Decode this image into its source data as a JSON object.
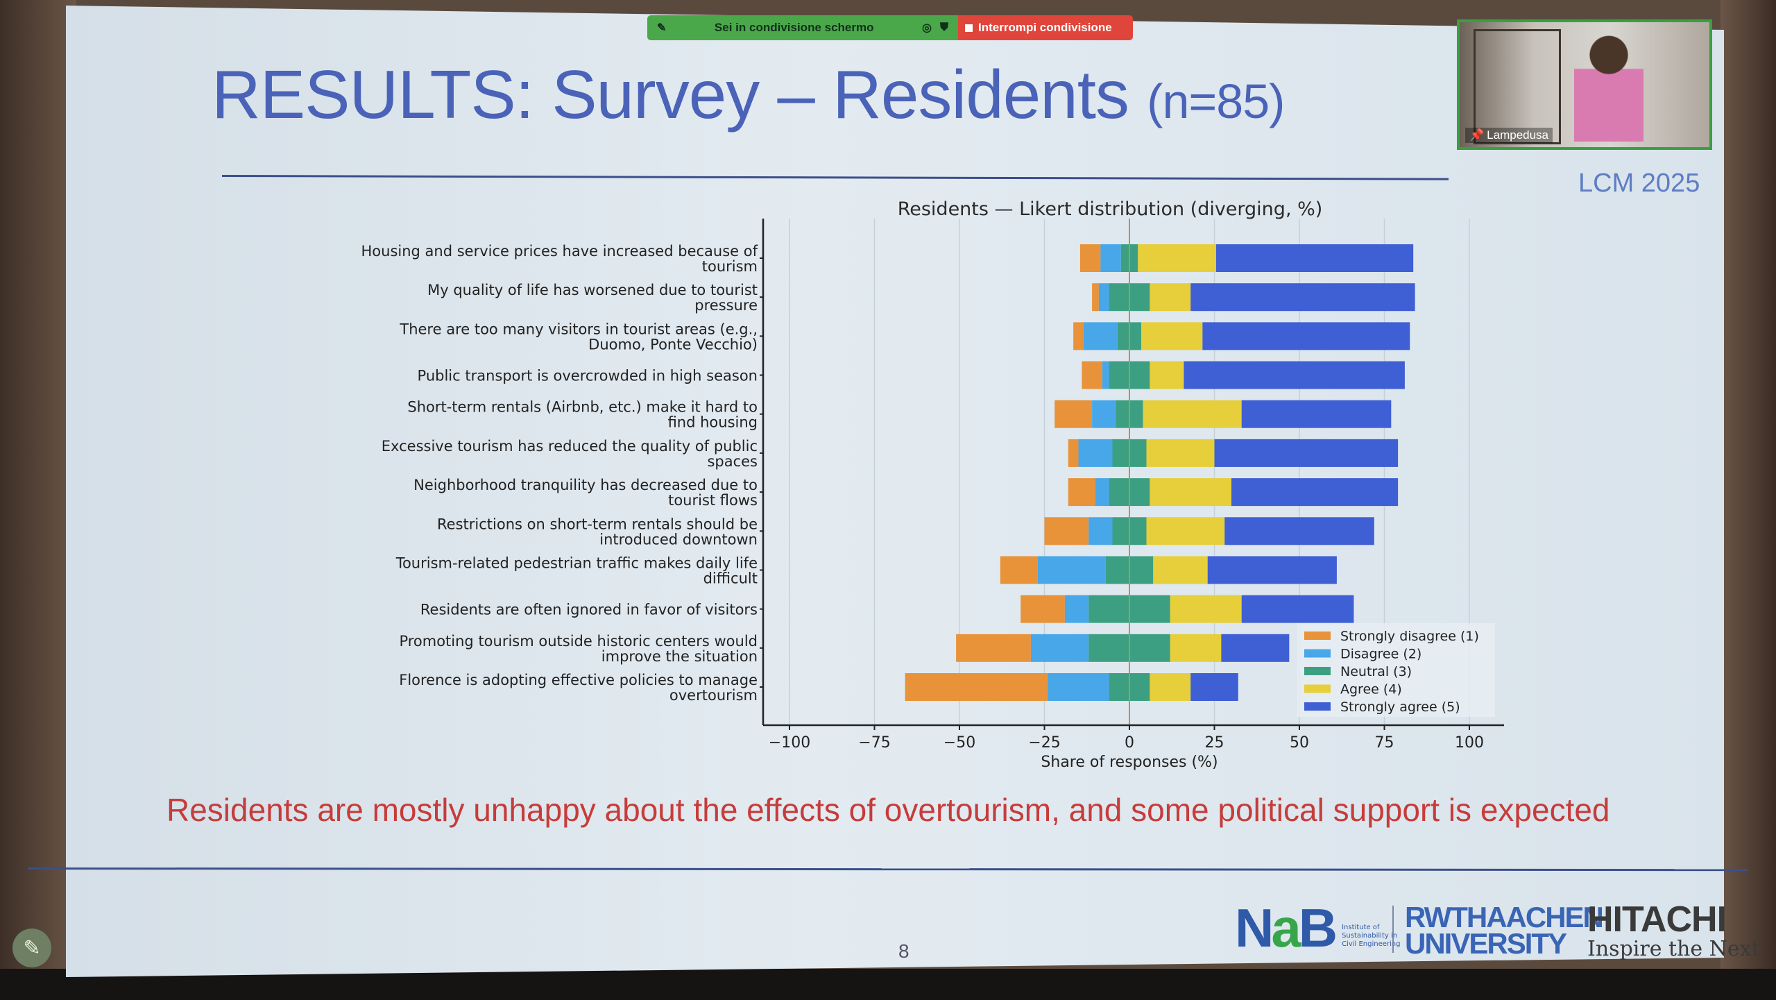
{
  "slide": {
    "title": "RESULTS: Survey – Residents",
    "title_n": "(n=85)",
    "tag": "LCM 2025",
    "conclusion": "Residents are mostly unhappy about the effects of overtourism, and some political support is expected",
    "page_number": "8"
  },
  "share_bar": {
    "status": "Sei in condivisione schermo",
    "stop": "Interrompi condivisione"
  },
  "video": {
    "participant": "Lampedusa"
  },
  "logos": {
    "nab_mark": "NaB",
    "nab_text": "Institute of Sustainability in Civil Engineering",
    "rwth_line1": "RWTHAACHEN",
    "rwth_line2": "UNIVERSITY",
    "hitachi": "HITACHI",
    "hitachi_slogan": "Inspire the Next"
  },
  "colors": {
    "strongly_disagree": "#e8923a",
    "disagree": "#48a7e8",
    "neutral": "#3d9f82",
    "agree": "#e6cf3a",
    "strongly_agree": "#3f5fd4",
    "title": "#4a63b8",
    "conclusion": "#c63c3a"
  },
  "chart_data": {
    "type": "bar",
    "subtype": "diverging-stacked-horizontal",
    "title": "Residents — Likert distribution (diverging, %)",
    "xlabel": "Share of responses (%)",
    "xlim": [
      -110,
      110
    ],
    "xticks": [
      "−100",
      "−75",
      "−50",
      "−25",
      "0",
      "25",
      "50",
      "75",
      "100"
    ],
    "xtick_values": [
      -100,
      -75,
      -50,
      -25,
      0,
      25,
      50,
      75,
      100
    ],
    "grid": true,
    "legend_position": "bottom-right",
    "categories": [
      "Housing and service prices have increased because of tourism",
      "My quality of life has worsened due to tourist pressure",
      "There are too many visitors in tourist areas (e.g., Duomo, Ponte Vecchio)",
      "Public transport is overcrowded in high season",
      "Short-term rentals (Airbnb, etc.) make it hard to find housing",
      "Excessive tourism has reduced the quality of public spaces",
      "Neighborhood tranquility has decreased due to tourist flows",
      "Restrictions on short-term rentals should be introduced downtown",
      "Tourism-related pedestrian traffic makes daily life difficult",
      "Residents are often ignored in favor of visitors",
      "Promoting tourism outside historic centers would improve the situation",
      "Florence is adopting effective policies to manage overtourism"
    ],
    "series": [
      {
        "name": "Strongly disagree (1)",
        "values": [
          6,
          2,
          3,
          6,
          11,
          3,
          8,
          13,
          11,
          13,
          22,
          42
        ]
      },
      {
        "name": "Disagree (2)",
        "values": [
          6,
          3,
          10,
          2,
          7,
          10,
          4,
          7,
          20,
          7,
          17,
          18
        ]
      },
      {
        "name": "Neutral (3)",
        "values": [
          5,
          12,
          7,
          12,
          8,
          10,
          12,
          10,
          14,
          24,
          24,
          12
        ]
      },
      {
        "name": "Agree (4)",
        "values": [
          23,
          12,
          18,
          10,
          29,
          20,
          24,
          23,
          16,
          21,
          15,
          12
        ]
      },
      {
        "name": "Strongly agree (5)",
        "values": [
          58,
          66,
          61,
          65,
          44,
          54,
          49,
          44,
          38,
          33,
          20,
          14
        ]
      }
    ]
  }
}
